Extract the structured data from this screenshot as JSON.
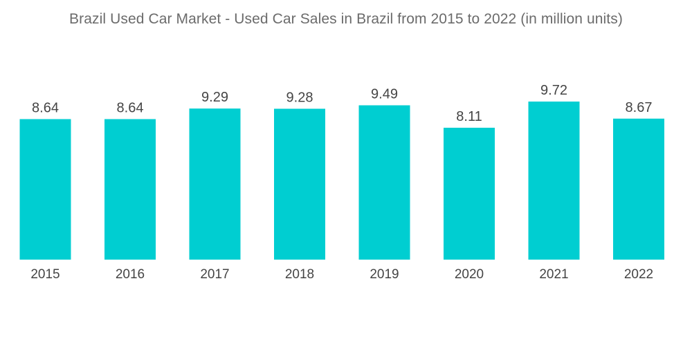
{
  "chart_data": {
    "type": "bar",
    "title": "Brazil Used Car Market - Used Car Sales in Brazil from 2015 to 2022 (in million units)",
    "categories": [
      "2015",
      "2016",
      "2017",
      "2018",
      "2019",
      "2020",
      "2021",
      "2022"
    ],
    "values": [
      8.64,
      8.64,
      9.29,
      9.28,
      9.49,
      8.11,
      9.72,
      8.67
    ],
    "value_labels": [
      "8.64",
      "8.64",
      "9.29",
      "9.28",
      "9.49",
      "8.11",
      "9.72",
      "8.67"
    ],
    "xlabel": "",
    "ylabel": "",
    "ylim": [
      0,
      10
    ],
    "grid": false,
    "legend": "none",
    "bar_color": "#00ced1"
  }
}
